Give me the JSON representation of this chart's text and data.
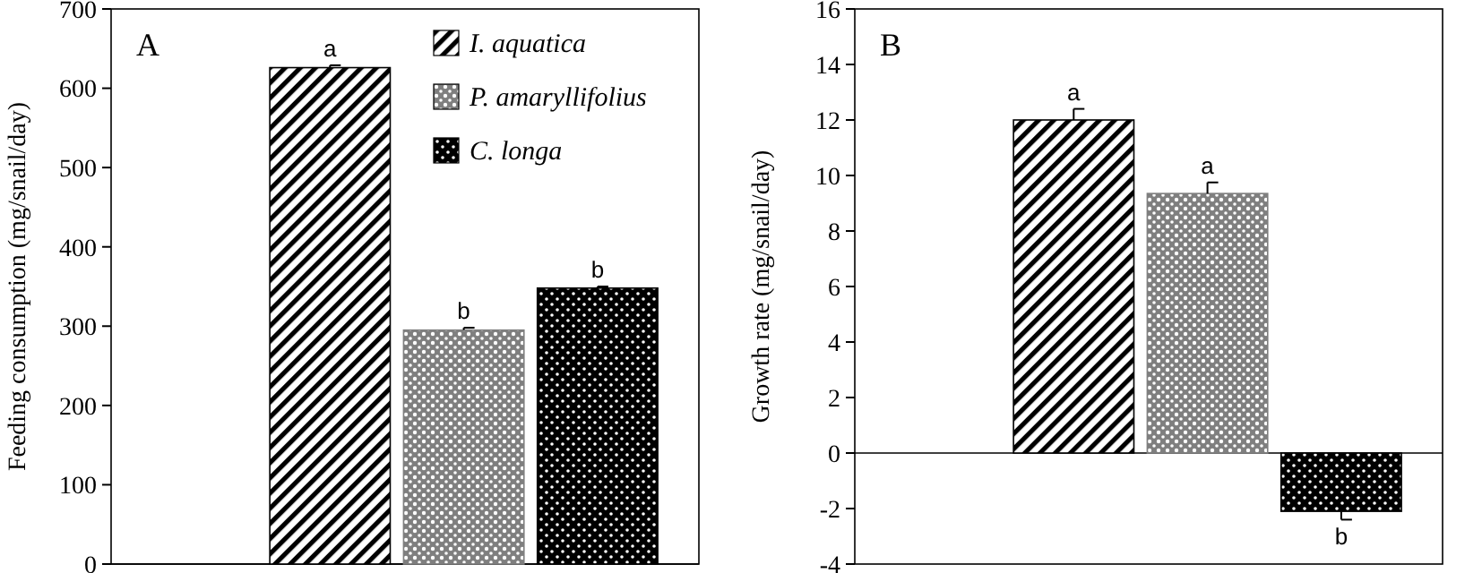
{
  "chart_data": [
    {
      "type": "bar",
      "ylabel": "Feeding consumption (mg/snail/day)",
      "categories": [
        null
      ],
      "ylim": [
        0,
        700
      ],
      "yticks": [
        0,
        100,
        200,
        300,
        400,
        500,
        600,
        700
      ],
      "legend": "top right",
      "series": [
        {
          "name": "I. aquatica",
          "color": "#000000",
          "values": [
            626
          ],
          "errors": [
            3
          ]
        },
        {
          "name": "P. amaryllifolius",
          "color": "#7f7f7f",
          "values": [
            295
          ],
          "errors": [
            3
          ]
        },
        {
          "name": "C. longa",
          "color": "#000000",
          "values": [
            348
          ],
          "errors": [
            2
          ]
        }
      ],
      "annotations": [
        {
          "text": "a",
          "y": 629
        },
        {
          "text": "b",
          "y": 298
        },
        {
          "text": "b",
          "y": 350
        },
        "A"
      ]
    },
    {
      "type": "bar",
      "ylabel": "Growth rate (mg/snail/day)",
      "categories": [
        null
      ],
      "ylim": [
        -4,
        16
      ],
      "yticks": [
        -4,
        -2,
        0,
        2,
        4,
        6,
        8,
        10,
        12,
        14,
        16
      ],
      "series": [
        {
          "color": "#000000",
          "values": [
            12.0
          ],
          "errors": [
            0.4
          ]
        },
        {
          "color": "#7f7f7f",
          "values": [
            9.35
          ],
          "errors": [
            0.4
          ]
        },
        {
          "color": "#000000",
          "values": [
            -2.1
          ],
          "errors": [
            0.3
          ]
        }
      ],
      "annotations": [
        {
          "text": "a",
          "y": 12.4
        },
        {
          "text": "a",
          "y": 9.75
        },
        {
          "text": "b",
          "y": -2.4
        },
        "B"
      ]
    }
  ]
}
